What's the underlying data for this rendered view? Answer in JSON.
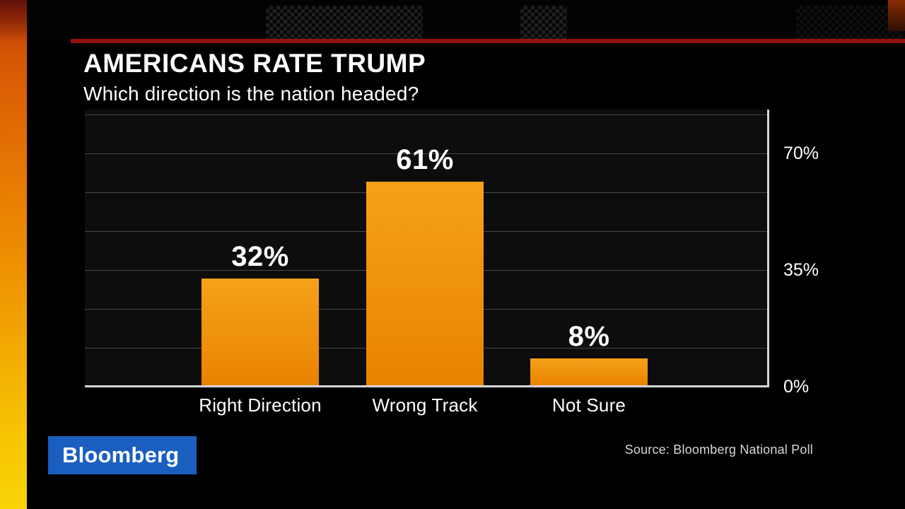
{
  "header": {
    "title": "AMERICANS RATE TRUMP",
    "subtitle": "Which direction is the nation headed?"
  },
  "chart_data": {
    "type": "bar",
    "title": "AMERICANS RATE TRUMP",
    "subtitle": "Which direction is the nation headed?",
    "categories": [
      "Right Direction",
      "Wrong Track",
      "Not Sure"
    ],
    "values": [
      32,
      61,
      8
    ],
    "value_labels": [
      "32%",
      "61%",
      "8%"
    ],
    "ylim": [
      0,
      70
    ],
    "yticks": [
      {
        "value": 70,
        "label": "70%"
      },
      {
        "value": 35,
        "label": "35%"
      },
      {
        "value": 0,
        "label": "0%"
      }
    ],
    "grid": true,
    "legend": false,
    "bar_color_top": "#f6a11a",
    "bar_color_bottom": "#e88300",
    "source": "Source: Bloomberg National Poll"
  },
  "footer": {
    "source": "Source: Bloomberg National Poll",
    "logo_text": "Bloomberg"
  },
  "colors": {
    "background": "#000000",
    "accent_red": "#931411",
    "bar_orange": "#f09200",
    "axis_line": "#d6d6d6",
    "gridline": "#474747",
    "logo_blue": "#1a5fc0",
    "stripe_orange": "#e87903",
    "stripe_yellow": "#fad406"
  }
}
